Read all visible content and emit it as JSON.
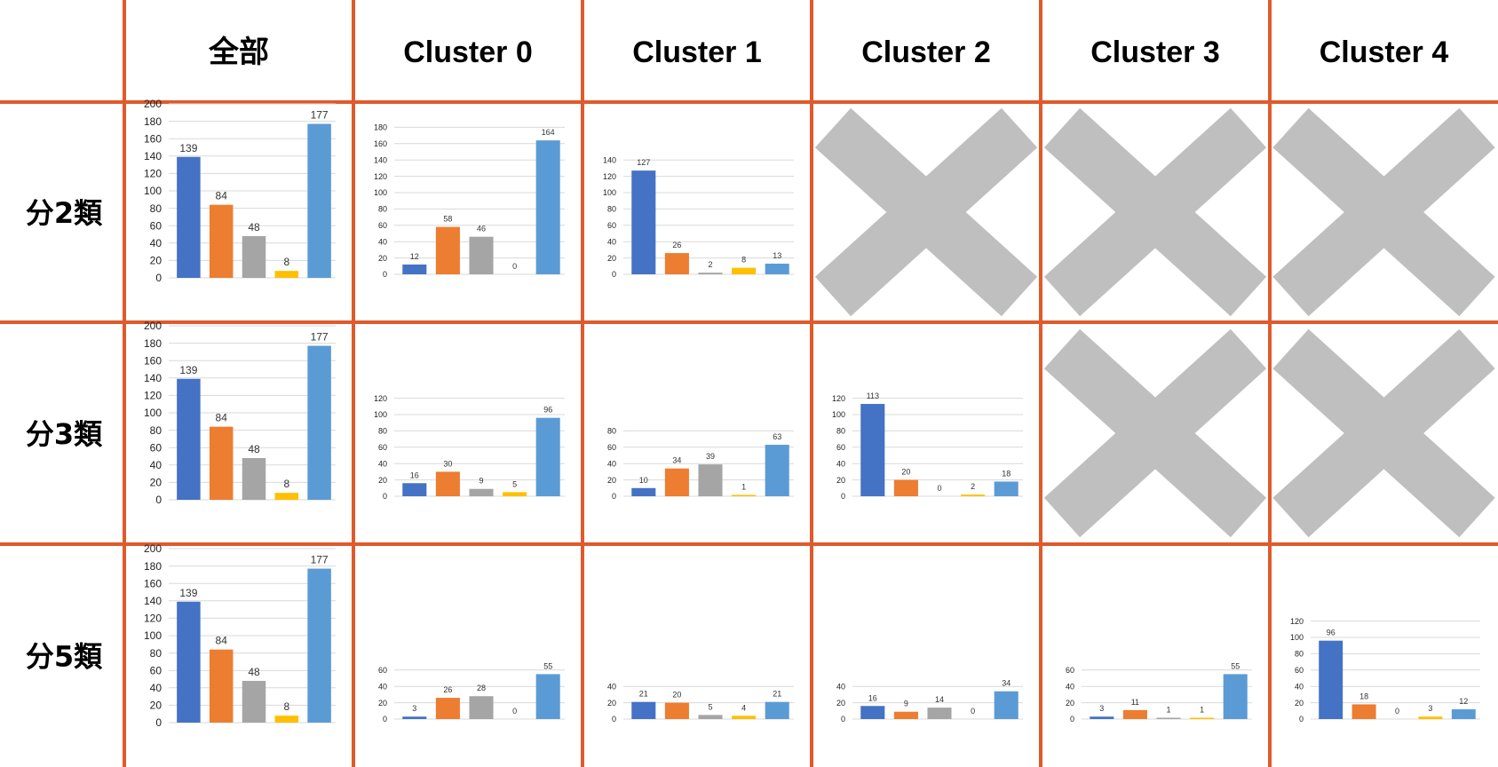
{
  "columns": [
    "全部",
    "Cluster 0",
    "Cluster 1",
    "Cluster 2",
    "Cluster 3",
    "Cluster 4"
  ],
  "rows": [
    "分2類",
    "分3類",
    "分5類"
  ],
  "colors": [
    "#4472c4",
    "#ed7d31",
    "#a5a5a5",
    "#ffc000",
    "#5b9bd5"
  ],
  "chart_data": [
    {
      "type": "bar",
      "row": "分2類",
      "column": "全部",
      "values": [
        139,
        84,
        48,
        8,
        177
      ],
      "ylim": [
        0,
        200
      ],
      "yticks": [
        0,
        20,
        40,
        60,
        80,
        100,
        120,
        140,
        160,
        180,
        200
      ]
    },
    {
      "type": "bar",
      "row": "分2類",
      "column": "Cluster 0",
      "values": [
        12,
        58,
        46,
        0,
        164
      ],
      "ylim": [
        0,
        180
      ],
      "yticks": [
        0,
        20,
        40,
        60,
        80,
        100,
        120,
        140,
        160,
        180
      ]
    },
    {
      "type": "bar",
      "row": "分2類",
      "column": "Cluster 1",
      "values": [
        127,
        26,
        2,
        8,
        13
      ],
      "ylim": [
        0,
        140
      ],
      "yticks": [
        0,
        20,
        40,
        60,
        80,
        100,
        120,
        140
      ]
    },
    {
      "type": "bar",
      "row": "分3類",
      "column": "全部",
      "values": [
        139,
        84,
        48,
        8,
        177
      ],
      "ylim": [
        0,
        200
      ],
      "yticks": [
        0,
        20,
        40,
        60,
        80,
        100,
        120,
        140,
        160,
        180,
        200
      ]
    },
    {
      "type": "bar",
      "row": "分3類",
      "column": "Cluster 0",
      "values": [
        16,
        30,
        9,
        5,
        96
      ],
      "ylim": [
        0,
        120
      ],
      "yticks": [
        0,
        20,
        40,
        60,
        80,
        100,
        120
      ]
    },
    {
      "type": "bar",
      "row": "分3類",
      "column": "Cluster 1",
      "values": [
        10,
        34,
        39,
        1,
        63
      ],
      "ylim": [
        0,
        80
      ],
      "yticks": [
        0,
        20,
        40,
        60,
        80
      ]
    },
    {
      "type": "bar",
      "row": "分3類",
      "column": "Cluster 2",
      "values": [
        113,
        20,
        0,
        2,
        18
      ],
      "ylim": [
        0,
        120
      ],
      "yticks": [
        0,
        20,
        40,
        60,
        80,
        100,
        120
      ]
    },
    {
      "type": "bar",
      "row": "分5類",
      "column": "全部",
      "values": [
        139,
        84,
        48,
        8,
        177
      ],
      "ylim": [
        0,
        200
      ],
      "yticks": [
        0,
        20,
        40,
        60,
        80,
        100,
        120,
        140,
        160,
        180,
        200
      ]
    },
    {
      "type": "bar",
      "row": "分5類",
      "column": "Cluster 0",
      "values": [
        3,
        26,
        28,
        0,
        55
      ],
      "ylim": [
        0,
        60
      ],
      "yticks": [
        0,
        20,
        40,
        60
      ]
    },
    {
      "type": "bar",
      "row": "分5類",
      "column": "Cluster 1",
      "values": [
        21,
        20,
        5,
        4,
        21
      ],
      "ylim": [
        0,
        40
      ],
      "yticks": [
        0,
        20,
        40
      ]
    },
    {
      "type": "bar",
      "row": "分5類",
      "column": "Cluster 2",
      "values": [
        16,
        9,
        14,
        0,
        34
      ],
      "ylim": [
        0,
        40
      ],
      "yticks": [
        0,
        20,
        40
      ]
    },
    {
      "type": "bar",
      "row": "分5類",
      "column": "Cluster 3",
      "values": [
        3,
        11,
        1,
        1,
        55
      ],
      "ylim": [
        0,
        60
      ],
      "yticks": [
        0,
        20,
        40,
        60
      ]
    },
    {
      "type": "bar",
      "row": "分5類",
      "column": "Cluster 4",
      "values": [
        96,
        18,
        0,
        3,
        12
      ],
      "ylim": [
        0,
        120
      ],
      "yticks": [
        0,
        20,
        40,
        60,
        80,
        100,
        120
      ]
    }
  ],
  "not_applicable": [
    {
      "row": "分2類",
      "column": "Cluster 2",
      "icon": "cross-icon"
    },
    {
      "row": "分2類",
      "column": "Cluster 3",
      "icon": "cross-icon"
    },
    {
      "row": "分2類",
      "column": "Cluster 4",
      "icon": "cross-icon"
    },
    {
      "row": "分3類",
      "column": "Cluster 3",
      "icon": "cross-icon"
    },
    {
      "row": "分3類",
      "column": "Cluster 4",
      "icon": "cross-icon"
    }
  ]
}
